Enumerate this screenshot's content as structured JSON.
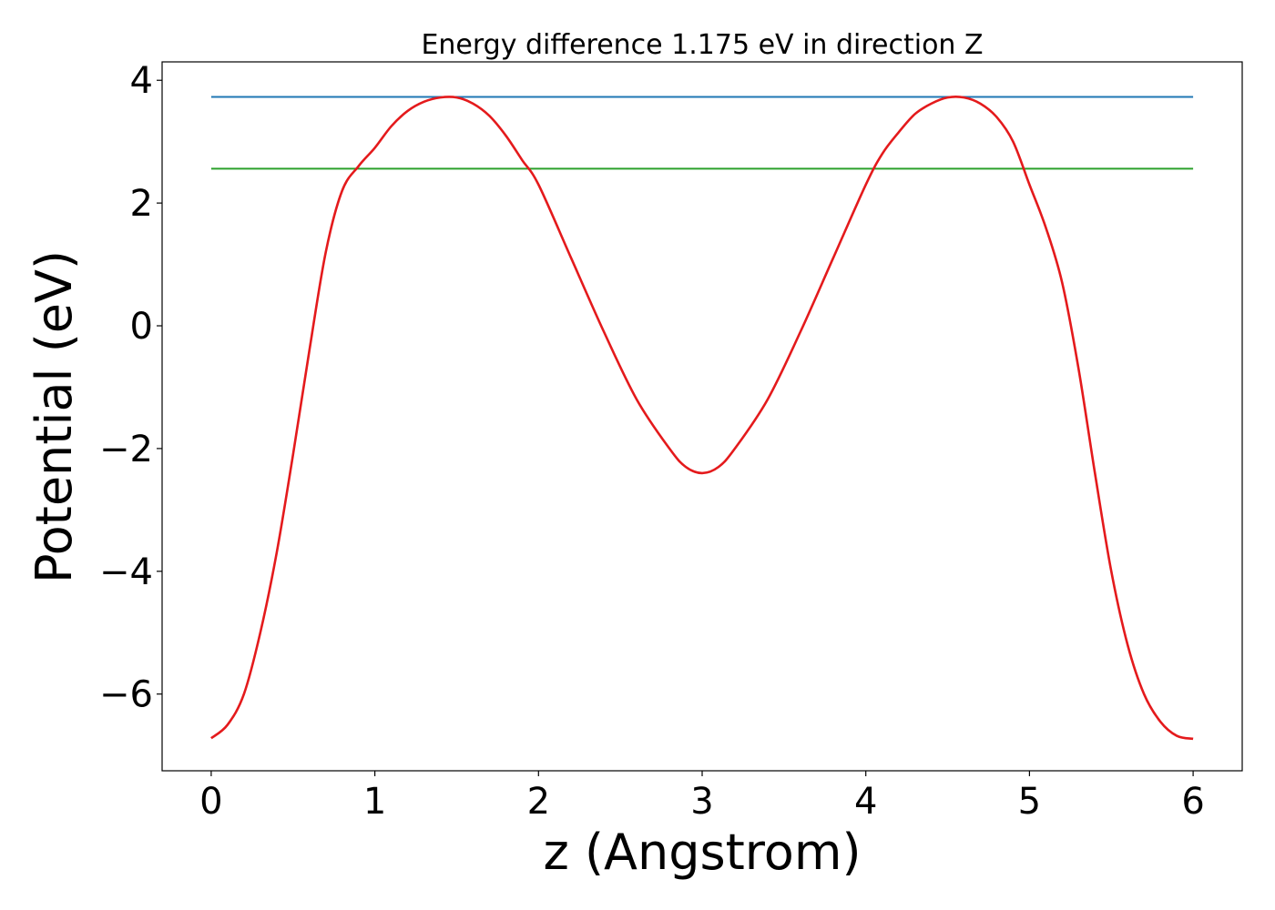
{
  "chart_data": {
    "type": "line",
    "title": "Energy difference 1.175 eV in direction Z",
    "xlabel": "z (Angstrom)",
    "ylabel": "Potential (eV)",
    "xlim": [
      -0.3,
      6.3
    ],
    "ylim": [
      -7.25,
      4.3
    ],
    "xticks": [
      0,
      1,
      2,
      3,
      4,
      5,
      6
    ],
    "xtick_labels": [
      "0",
      "1",
      "2",
      "3",
      "4",
      "5",
      "6"
    ],
    "yticks": [
      -6,
      -4,
      -2,
      0,
      2,
      4
    ],
    "ytick_labels": [
      "−6",
      "−4",
      "−2",
      "0",
      "2",
      "4"
    ],
    "grid": false,
    "series": [
      {
        "color": "#1f77b4",
        "x": [
          0,
          6
        ],
        "y": [
          3.73,
          3.73
        ]
      },
      {
        "color": "#2ca02c",
        "x": [
          0,
          6
        ],
        "y": [
          2.56,
          2.56
        ]
      },
      {
        "color": "#e41a1c",
        "x": [
          0,
          0.1,
          0.2,
          0.3,
          0.4,
          0.5,
          0.6,
          0.7,
          0.8,
          0.9,
          1.0,
          1.1,
          1.2,
          1.3,
          1.4,
          1.5,
          1.6,
          1.7,
          1.8,
          1.9,
          2.0,
          2.2,
          2.4,
          2.6,
          2.8,
          2.9,
          3.0,
          3.1,
          3.2,
          3.4,
          3.6,
          3.8,
          4.0,
          4.1,
          4.2,
          4.3,
          4.4,
          4.5,
          4.6,
          4.7,
          4.8,
          4.9,
          5.0,
          5.1,
          5.2,
          5.3,
          5.4,
          5.5,
          5.6,
          5.7,
          5.8,
          5.9,
          6.0
        ],
        "y": [
          -6.72,
          -6.5,
          -6.0,
          -5.0,
          -3.7,
          -2.1,
          -0.4,
          1.2,
          2.2,
          2.6,
          2.9,
          3.25,
          3.5,
          3.65,
          3.72,
          3.72,
          3.62,
          3.42,
          3.1,
          2.7,
          2.3,
          1.1,
          -0.1,
          -1.2,
          -2.0,
          -2.3,
          -2.4,
          -2.3,
          -2.0,
          -1.2,
          -0.1,
          1.1,
          2.3,
          2.8,
          3.15,
          3.45,
          3.62,
          3.72,
          3.72,
          3.62,
          3.4,
          3.0,
          2.3,
          1.6,
          0.7,
          -0.7,
          -2.4,
          -4.0,
          -5.2,
          -6.0,
          -6.45,
          -6.68,
          -6.73
        ]
      }
    ]
  }
}
